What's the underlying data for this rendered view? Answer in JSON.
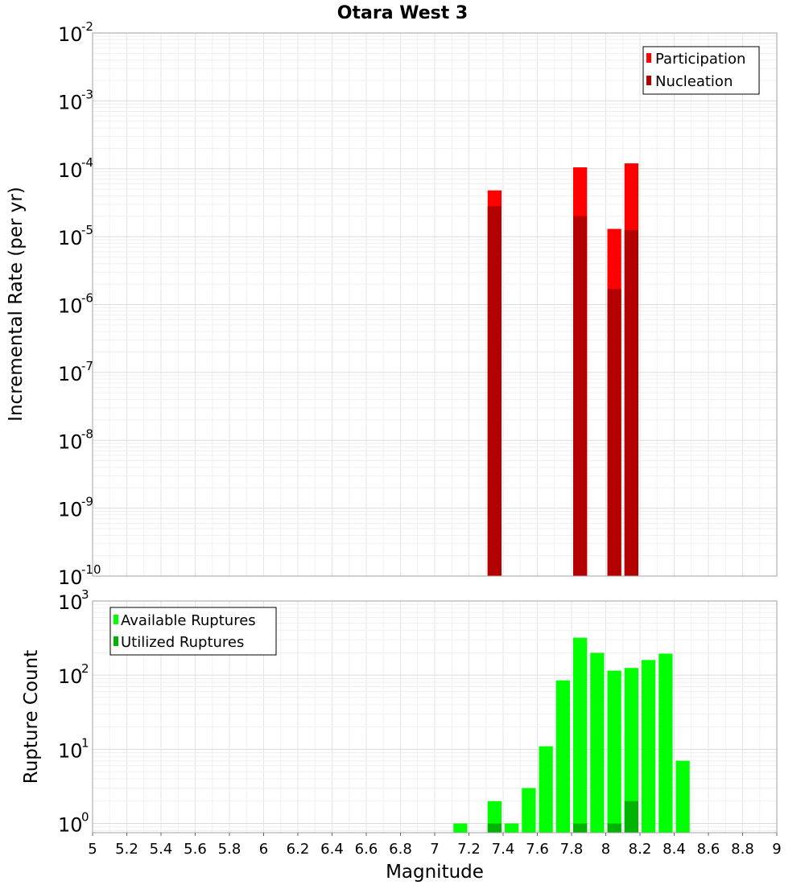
{
  "chart_data": [
    {
      "type": "bar",
      "title": "Otara West 3",
      "xlabel": "",
      "ylabel": "Incremental Rate (per yr)",
      "yscale": "log",
      "ylim": [
        1e-10,
        0.01
      ],
      "xlim": [
        5,
        9
      ],
      "bar_width": 0.1,
      "grid": true,
      "legend": {
        "placement": "top-right"
      },
      "y_tick_labels": [
        {
          "base": "10",
          "exp": "-2",
          "value": 0.01
        },
        {
          "base": "10",
          "exp": "-3",
          "value": 0.001
        },
        {
          "base": "10",
          "exp": "-4",
          "value": 0.0001
        },
        {
          "base": "10",
          "exp": "-5",
          "value": 1e-05
        },
        {
          "base": "10",
          "exp": "-6",
          "value": 1e-06
        },
        {
          "base": "10",
          "exp": "-7",
          "value": 1e-07
        },
        {
          "base": "10",
          "exp": "-8",
          "value": 1e-08
        },
        {
          "base": "10",
          "exp": "-9",
          "value": 1e-09
        },
        {
          "base": "10",
          "exp": "-10",
          "value": 1e-10
        }
      ],
      "series": [
        {
          "name": "Participation",
          "color": "#ff0000",
          "x": [
            7.35,
            7.85,
            8.05,
            8.15
          ],
          "values": [
            4.8e-05,
            0.000105,
            1.3e-05,
            0.00012
          ]
        },
        {
          "name": "Nucleation",
          "color": "#b30000",
          "x": [
            7.35,
            7.85,
            8.05,
            8.15
          ],
          "values": [
            2.8e-05,
            2e-05,
            1.7e-06,
            1.25e-05
          ]
        }
      ]
    },
    {
      "type": "bar",
      "title": "",
      "xlabel": "Magnitude",
      "ylabel": "Rupture Count",
      "yscale": "log",
      "ylim": [
        0.75,
        1000
      ],
      "xlim": [
        5,
        9
      ],
      "bar_width": 0.1,
      "grid": true,
      "legend": {
        "placement": "top-left"
      },
      "y_tick_labels": [
        {
          "base": "10",
          "exp": "3",
          "value": 1000
        },
        {
          "base": "10",
          "exp": "2",
          "value": 100
        },
        {
          "base": "10",
          "exp": "1",
          "value": 10
        },
        {
          "base": "10",
          "exp": "0",
          "value": 1
        }
      ],
      "x_tick_labels": [
        "5",
        "5.2",
        "5.4",
        "5.6",
        "5.8",
        "6",
        "6.2",
        "6.4",
        "6.6",
        "6.8",
        "7",
        "7.2",
        "7.4",
        "7.6",
        "7.8",
        "8",
        "8.2",
        "8.4",
        "8.6",
        "8.8",
        "9"
      ],
      "series": [
        {
          "name": "Available Ruptures",
          "color": "#00ff00",
          "x": [
            7.15,
            7.35,
            7.45,
            7.55,
            7.65,
            7.75,
            7.85,
            7.95,
            8.05,
            8.15,
            8.25,
            8.35,
            8.45
          ],
          "values": [
            1,
            2,
            1,
            3,
            11,
            85,
            320,
            200,
            115,
            125,
            160,
            195,
            7
          ]
        },
        {
          "name": "Utilized Ruptures",
          "color": "#00b300",
          "x": [
            7.35,
            7.85,
            8.05,
            8.15
          ],
          "values": [
            1,
            1,
            1,
            2
          ]
        }
      ]
    }
  ]
}
